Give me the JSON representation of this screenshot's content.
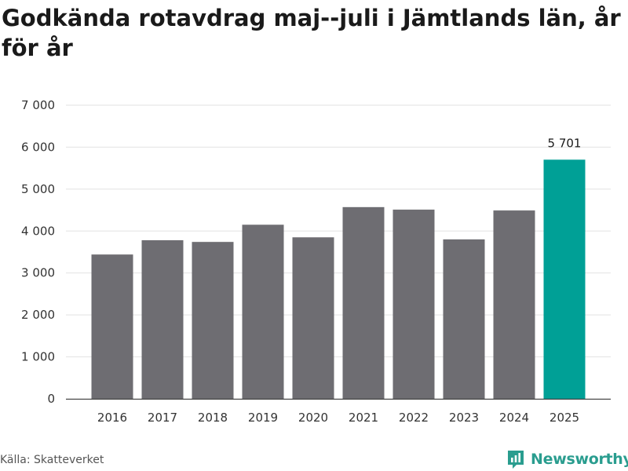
{
  "title": "Godkända rotavdrag maj--juli i Jämtlands län, år för år",
  "source": "Källa: Skatteverket",
  "brand": "Newsworthy",
  "colors": {
    "bar": "#6e6d72",
    "highlight": "#00a096",
    "grid": "#e2e2e2",
    "axis": "#444444",
    "brand": "#2a9d8f"
  },
  "chart_data": {
    "type": "bar",
    "categories": [
      "2016",
      "2017",
      "2018",
      "2019",
      "2020",
      "2021",
      "2022",
      "2023",
      "2024",
      "2025"
    ],
    "values": [
      3440,
      3780,
      3740,
      4150,
      3850,
      4570,
      4510,
      3800,
      4490,
      5701
    ],
    "highlight_index": 9,
    "data_labels": [
      {
        "index": 9,
        "text": "5 701"
      }
    ],
    "ylim": [
      0,
      7000
    ],
    "yticks": [
      0,
      1000,
      2000,
      3000,
      4000,
      5000,
      6000,
      7000
    ],
    "ytick_labels": [
      "0",
      "1 000",
      "2 000",
      "3 000",
      "4 000",
      "5 000",
      "6 000",
      "7 000"
    ],
    "grid": true,
    "legend": false
  }
}
